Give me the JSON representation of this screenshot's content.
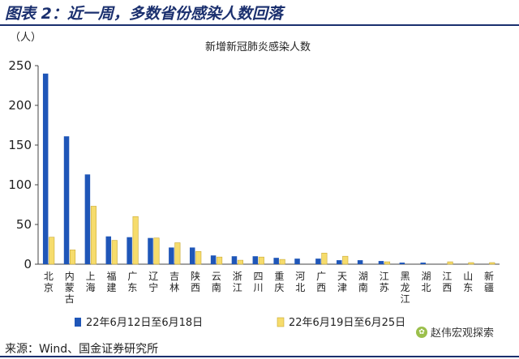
{
  "figure_title": "图表 2：近一周，多数省份感染人数回落",
  "source_note": "来源：Wind、国金证券研究所",
  "watermark": {
    "text": "赵伟宏观探索",
    "icon": "wechat-icon"
  },
  "colors": {
    "series1": "#1f56b8",
    "series2": "#f6dc6c",
    "series2_stroke": "#c9a933",
    "title": "#1a2f6e"
  },
  "chart_data": {
    "type": "bar",
    "title": "新增新冠肺炎感染人数",
    "ylabel": "（人）",
    "xlabel": "",
    "ylim": [
      0,
      250
    ],
    "yticks": [
      0,
      50,
      100,
      150,
      200,
      250
    ],
    "grid": false,
    "legend_position": "bottom",
    "categories": [
      "北京",
      "内蒙古",
      "上海",
      "福建",
      "广东",
      "辽宁",
      "吉林",
      "陕西",
      "云南",
      "浙江",
      "四川",
      "重庆",
      "河北",
      "广西",
      "天津",
      "湖南",
      "江苏",
      "黑龙江",
      "湖北",
      "江西",
      "山东",
      "新疆"
    ],
    "series": [
      {
        "name": "22年6月12日至6月18日",
        "values": [
          240,
          161,
          113,
          35,
          34,
          33,
          21,
          21,
          11,
          10,
          10,
          8,
          7,
          7,
          5,
          5,
          4,
          2,
          2,
          0,
          0,
          0
        ]
      },
      {
        "name": "22年6月19日至6月25日",
        "values": [
          34,
          18,
          73,
          30,
          60,
          33,
          27,
          16,
          9,
          5,
          9,
          6,
          0,
          14,
          10,
          0,
          3,
          0,
          0,
          3,
          2,
          2
        ]
      }
    ]
  }
}
